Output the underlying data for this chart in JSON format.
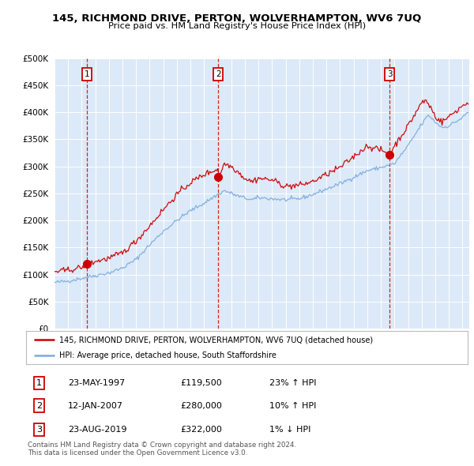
{
  "title": "145, RICHMOND DRIVE, PERTON, WOLVERHAMPTON, WV6 7UQ",
  "subtitle": "Price paid vs. HM Land Registry's House Price Index (HPI)",
  "legend_line1": "145, RICHMOND DRIVE, PERTON, WOLVERHAMPTON, WV6 7UQ (detached house)",
  "legend_line2": "HPI: Average price, detached house, South Staffordshire",
  "footer1": "Contains HM Land Registry data © Crown copyright and database right 2024.",
  "footer2": "This data is licensed under the Open Government Licence v3.0.",
  "transactions": [
    {
      "num": 1,
      "date": "23-MAY-1997",
      "price": "£119,500",
      "hpi_change": "23% ↑ HPI",
      "x_year": 1997.39,
      "y_val": 119500
    },
    {
      "num": 2,
      "date": "12-JAN-2007",
      "price": "£280,000",
      "hpi_change": "10% ↑ HPI",
      "x_year": 2007.03,
      "y_val": 280000
    },
    {
      "num": 3,
      "date": "23-AUG-2019",
      "price": "£322,000",
      "hpi_change": "1% ↓ HPI",
      "x_year": 2019.64,
      "y_val": 322000
    }
  ],
  "ylim": [
    0,
    500000
  ],
  "yticks": [
    0,
    50000,
    100000,
    150000,
    200000,
    250000,
    300000,
    350000,
    400000,
    450000,
    500000
  ],
  "xlim_start": 1995.0,
  "xlim_end": 2025.5,
  "background_color": "#dce9f8",
  "red_line_color": "#cc0000",
  "blue_line_color": "#7aaadd",
  "dot_color": "#cc0000",
  "vline_color": "#cc0000",
  "grid_color": "#ffffff",
  "box_edge_color": "#cc0000",
  "hpi_waypoints": [
    [
      1995.0,
      85000
    ],
    [
      1996.0,
      88000
    ],
    [
      1997.0,
      93000
    ],
    [
      1998.0,
      98000
    ],
    [
      1999.0,
      103000
    ],
    [
      2000.0,
      112000
    ],
    [
      2001.0,
      128000
    ],
    [
      2002.0,
      155000
    ],
    [
      2003.0,
      180000
    ],
    [
      2004.0,
      200000
    ],
    [
      2005.0,
      218000
    ],
    [
      2006.0,
      232000
    ],
    [
      2007.0,
      248000
    ],
    [
      2007.5,
      255000
    ],
    [
      2008.5,
      245000
    ],
    [
      2009.5,
      238000
    ],
    [
      2010.0,
      242000
    ],
    [
      2011.0,
      240000
    ],
    [
      2012.0,
      238000
    ],
    [
      2013.0,
      240000
    ],
    [
      2014.0,
      248000
    ],
    [
      2015.0,
      258000
    ],
    [
      2016.0,
      268000
    ],
    [
      2017.0,
      280000
    ],
    [
      2018.0,
      292000
    ],
    [
      2019.0,
      298000
    ],
    [
      2020.0,
      305000
    ],
    [
      2021.0,
      338000
    ],
    [
      2022.0,
      378000
    ],
    [
      2022.5,
      395000
    ],
    [
      2023.0,
      382000
    ],
    [
      2023.5,
      372000
    ],
    [
      2024.0,
      375000
    ],
    [
      2025.0,
      390000
    ],
    [
      2025.4,
      400000
    ]
  ],
  "red_waypoints": [
    [
      1995.0,
      105000
    ],
    [
      1996.0,
      108000
    ],
    [
      1997.0,
      113000
    ],
    [
      1997.39,
      119500
    ],
    [
      1998.0,
      124000
    ],
    [
      1999.0,
      130000
    ],
    [
      2000.0,
      140000
    ],
    [
      2001.0,
      162000
    ],
    [
      2002.0,
      190000
    ],
    [
      2003.0,
      220000
    ],
    [
      2004.0,
      248000
    ],
    [
      2005.0,
      270000
    ],
    [
      2006.0,
      285000
    ],
    [
      2007.0,
      295000
    ],
    [
      2007.03,
      280000
    ],
    [
      2007.5,
      305000
    ],
    [
      2008.0,
      300000
    ],
    [
      2008.5,
      290000
    ],
    [
      2009.0,
      278000
    ],
    [
      2009.5,
      272000
    ],
    [
      2010.0,
      278000
    ],
    [
      2011.0,
      275000
    ],
    [
      2012.0,
      263000
    ],
    [
      2013.0,
      265000
    ],
    [
      2014.0,
      272000
    ],
    [
      2015.0,
      285000
    ],
    [
      2016.0,
      298000
    ],
    [
      2017.0,
      318000
    ],
    [
      2018.0,
      338000
    ],
    [
      2019.0,
      330000
    ],
    [
      2019.64,
      322000
    ],
    [
      2020.0,
      338000
    ],
    [
      2021.0,
      375000
    ],
    [
      2022.0,
      418000
    ],
    [
      2022.3,
      422000
    ],
    [
      2022.7,
      408000
    ],
    [
      2023.0,
      392000
    ],
    [
      2023.5,
      382000
    ],
    [
      2024.0,
      392000
    ],
    [
      2025.0,
      412000
    ],
    [
      2025.4,
      418000
    ]
  ]
}
